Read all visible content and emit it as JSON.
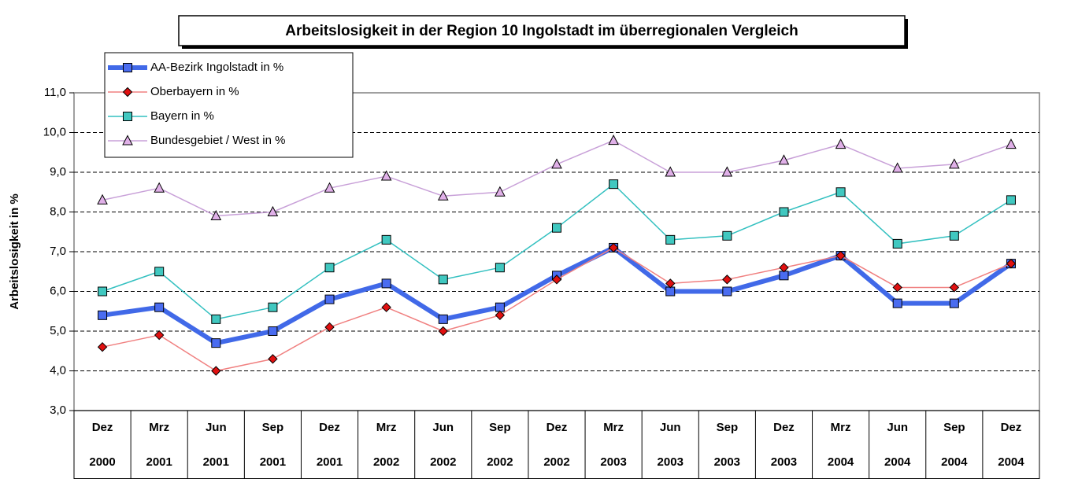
{
  "chart_data": {
    "type": "line",
    "title": "Arbeitslosigkeit in der Region 10 Ingolstadt im überregionalen Vergleich",
    "y_label": "Arbeitslosigkeit in %",
    "categories": [
      [
        "Dez",
        "2000"
      ],
      [
        "Mrz",
        "2001"
      ],
      [
        "Jun",
        "2001"
      ],
      [
        "Sep",
        "2001"
      ],
      [
        "Dez",
        "2001"
      ],
      [
        "Mrz",
        "2002"
      ],
      [
        "Jun",
        "2002"
      ],
      [
        "Sep",
        "2002"
      ],
      [
        "Dez",
        "2002"
      ],
      [
        "Mrz",
        "2003"
      ],
      [
        "Jun",
        "2003"
      ],
      [
        "Sep",
        "2003"
      ],
      [
        "Dez",
        "2003"
      ],
      [
        "Mrz",
        "2004"
      ],
      [
        "Jun",
        "2004"
      ],
      [
        "Sep",
        "2004"
      ],
      [
        "Dez",
        "2004"
      ]
    ],
    "series": [
      {
        "name": "AA-Bezirk Ingolstadt in %",
        "color": "#4169e8",
        "marker": "square",
        "marker_color": "#4a6cf0",
        "line_width": 6,
        "values": [
          5.4,
          5.6,
          4.7,
          5.0,
          5.8,
          6.2,
          5.3,
          5.6,
          6.4,
          7.1,
          6.0,
          6.0,
          6.4,
          6.9,
          5.7,
          5.7,
          6.7
        ]
      },
      {
        "name": "Oberbayern in %",
        "color": "#f08080",
        "marker": "diamond",
        "marker_color": "#e01010",
        "line_width": 1.5,
        "values": [
          4.6,
          4.9,
          4.0,
          4.3,
          5.1,
          5.6,
          5.0,
          5.4,
          6.3,
          7.1,
          6.2,
          6.3,
          6.6,
          6.9,
          6.1,
          6.1,
          6.7
        ]
      },
      {
        "name": "Bayern in %",
        "color": "#33c0c0",
        "marker": "square",
        "marker_color": "#40c8c0",
        "line_width": 1.5,
        "values": [
          6.0,
          6.5,
          5.3,
          5.6,
          6.6,
          7.3,
          6.3,
          6.6,
          7.6,
          8.7,
          7.3,
          7.4,
          8.0,
          8.5,
          7.2,
          7.4,
          8.3
        ]
      },
      {
        "name": "Bundesgebiet / West in %",
        "color": "#c8a0d8",
        "marker": "triangle",
        "marker_color": "#e0b0e8",
        "line_width": 1.5,
        "values": [
          8.3,
          8.6,
          7.9,
          8.0,
          8.6,
          8.9,
          8.4,
          8.5,
          9.2,
          9.8,
          9.0,
          9.0,
          9.3,
          9.7,
          9.1,
          9.2,
          9.7
        ]
      }
    ],
    "ylim": [
      3,
      11
    ],
    "yticks": [
      {
        "value": 3,
        "label": "3,0"
      },
      {
        "value": 4,
        "label": "4,0"
      },
      {
        "value": 5,
        "label": "5,0"
      },
      {
        "value": 6,
        "label": "6,0"
      },
      {
        "value": 7,
        "label": "7,0"
      },
      {
        "value": 8,
        "label": "8,0"
      },
      {
        "value": 9,
        "label": "9,0"
      },
      {
        "value": 10,
        "label": "10,0"
      },
      {
        "value": 11,
        "label": "11,0"
      }
    ],
    "grid": true,
    "legend": "upper left"
  }
}
